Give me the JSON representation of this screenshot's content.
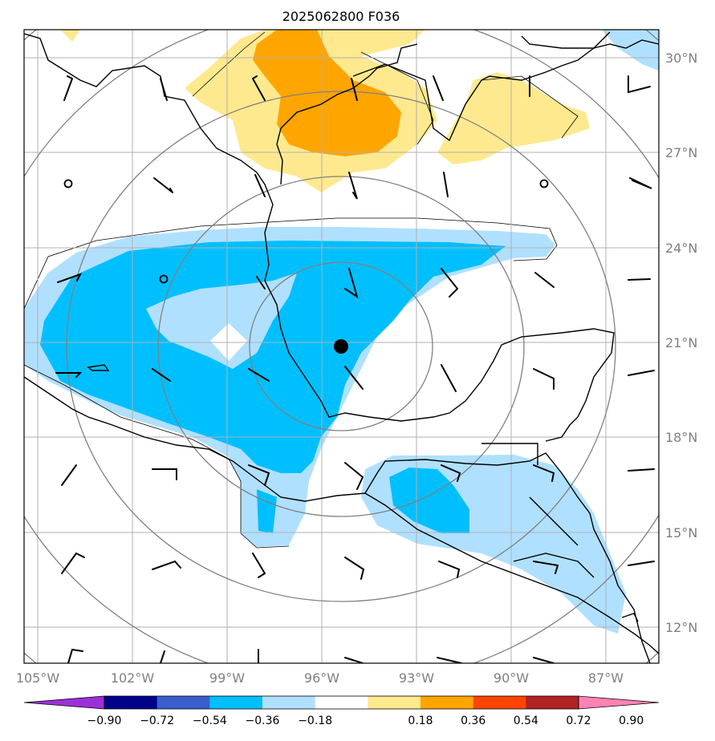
{
  "title": "2025062800 F036",
  "longitude_labels": [
    "105°W",
    "102°W",
    "99°W",
    "96°W",
    "93°W",
    "90°W",
    "87°W"
  ],
  "latitude_labels": [
    "30°N",
    "27°N",
    "24°N",
    "21°N",
    "18°N",
    "15°N",
    "12°N"
  ],
  "colorbar": {
    "tick_labels": [
      "−0.90",
      "−0.72",
      "−0.54",
      "−0.36",
      "−0.18",
      "0.18",
      "0.36",
      "0.54",
      "0.72",
      "0.90"
    ],
    "colors": [
      "#9b30d9",
      "#00008b",
      "#3a5fcd",
      "#00bfff",
      "#b0e0ff",
      "#ffffff",
      "#ffe98f",
      "#ffa500",
      "#ff4500",
      "#b22222",
      "#ff82b4"
    ]
  },
  "map": {
    "center_marker": {
      "lon": -95.5,
      "lat": 20.9
    },
    "range_rings": 5,
    "colors": {
      "coast": "#000000",
      "grid": "#b0b0b0",
      "rings": "#808080"
    }
  }
}
